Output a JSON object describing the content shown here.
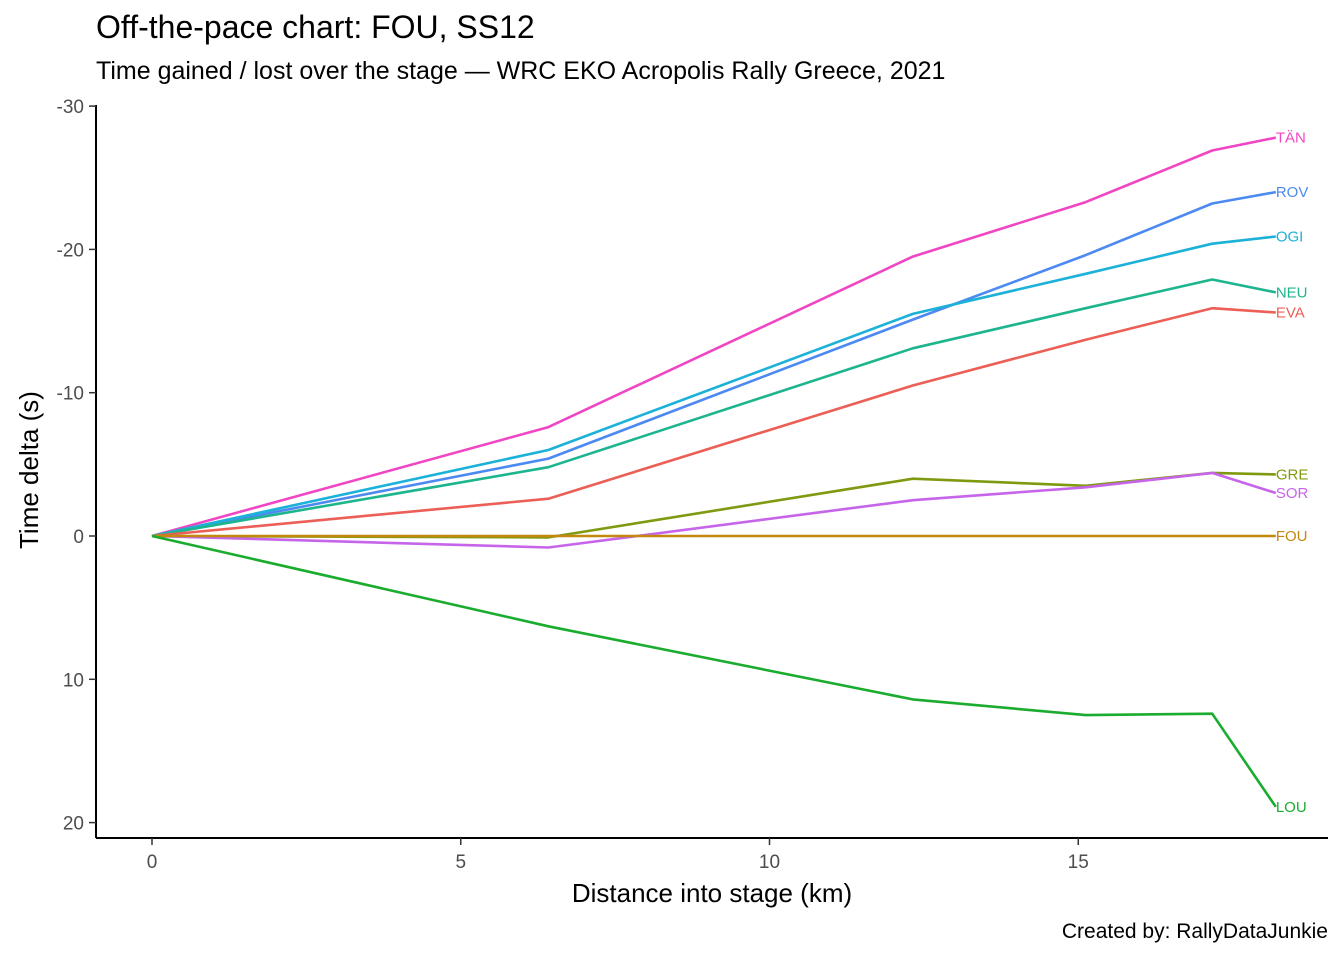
{
  "chart_title": "Off-the-pace chart: FOU, SS12",
  "chart_subtitle": "Time gained / lost over the stage — WRC EKO Acropolis Rally Greece, 2021",
  "caption": "Created by: RallyDataJunkie",
  "chart_data": {
    "type": "line",
    "title": "Off-the-pace chart: FOU, SS12",
    "subtitle": "Time gained / lost over the stage — WRC EKO Acropolis Rally Greece, 2021",
    "xlabel": "Distance into stage (km)",
    "ylabel": "Time delta (s)",
    "xlim": [
      -0.9,
      18.9
    ],
    "ylim": [
      21,
      -30
    ],
    "y_reversed": true,
    "x_ticks": [
      0,
      5,
      10,
      15
    ],
    "x_tick_labels": [
      "0",
      "5",
      "10",
      "15"
    ],
    "y_ticks": [
      -30,
      -20,
      -10,
      0,
      10,
      20
    ],
    "y_tick_labels": [
      "-30",
      "-20",
      "-10",
      "0",
      "10",
      "20"
    ],
    "grid": false,
    "legend": "direct labels at line ends",
    "x": [
      0,
      6.42,
      12.32,
      15.12,
      17.17,
      18.2
    ],
    "series": [
      {
        "name": "TÄN",
        "color": "#f046c4",
        "values": [
          0,
          -7.6,
          -19.5,
          -23.3,
          -26.9,
          -27.8
        ]
      },
      {
        "name": "ROV",
        "color": "#4c8af2",
        "values": [
          0,
          -5.4,
          -15.1,
          -19.6,
          -23.2,
          -24.0
        ]
      },
      {
        "name": "OGI",
        "color": "#1bb1d8",
        "values": [
          0,
          -6.0,
          -15.5,
          -18.3,
          -20.4,
          -20.9
        ]
      },
      {
        "name": "NEU",
        "color": "#1db58d",
        "values": [
          0,
          -4.8,
          -13.1,
          -15.9,
          -17.9,
          -17.0
        ]
      },
      {
        "name": "EVA",
        "color": "#ec5f56",
        "values": [
          0,
          -2.6,
          -10.5,
          -13.7,
          -15.9,
          -15.6
        ]
      },
      {
        "name": "GRE",
        "color": "#7f9a11",
        "values": [
          0,
          0.1,
          -4.0,
          -3.5,
          -4.4,
          -4.3
        ]
      },
      {
        "name": "SOR",
        "color": "#c665ea",
        "values": [
          0,
          0.8,
          -2.5,
          -3.4,
          -4.4,
          -3.0
        ]
      },
      {
        "name": "FOU",
        "color": "#c3880e",
        "values": [
          0,
          0,
          0,
          0,
          0,
          0
        ]
      },
      {
        "name": "LOU",
        "color": "#1aac2e",
        "values": [
          0,
          6.3,
          11.4,
          12.5,
          12.4,
          18.9
        ]
      }
    ]
  }
}
